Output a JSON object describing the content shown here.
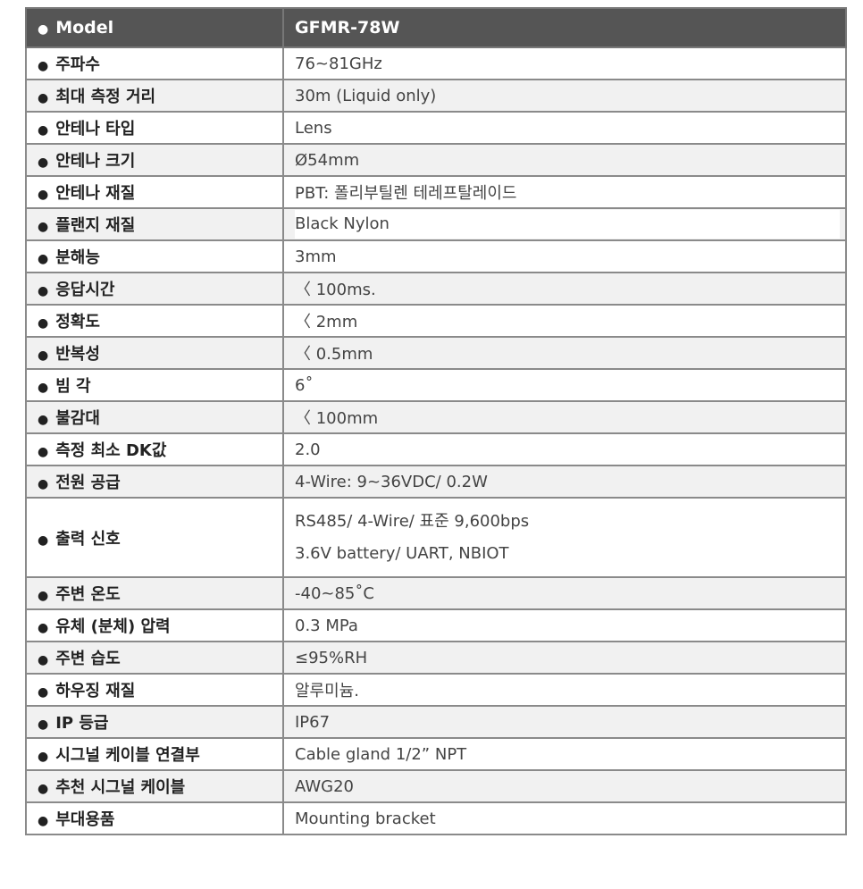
{
  "header": {
    "label": "Model",
    "value": "GFMR-78W"
  },
  "rows": [
    {
      "label": "주파수",
      "value": "76~81GHz"
    },
    {
      "label": "최대 측정 거리",
      "value": "30m (Liquid only)"
    },
    {
      "label": "안테나 타입",
      "value": "Lens"
    },
    {
      "label": "안테나 크기",
      "value": "Ø54mm"
    },
    {
      "label": "안테나 재질",
      "value": "PBT:  폴리부틸렌 테레프탈레이드"
    },
    {
      "label": "플랜지 재질",
      "value": "Black Nylon"
    },
    {
      "label": "분해능",
      "value": "3mm"
    },
    {
      "label": "응답시간",
      "value": "〈 100ms."
    },
    {
      "label": "정확도",
      "value": "〈 2mm"
    },
    {
      "label": "반복성",
      "value": "〈 0.5mm"
    },
    {
      "label": "빔 각",
      "value": "6˚"
    },
    {
      "label": "불감대",
      "value": "〈 100mm"
    },
    {
      "label": "측정 최소 DK값",
      "value": "2.0"
    },
    {
      "label": "전원 공급",
      "value": "4-Wire: 9~36VDC/ 0.2W"
    },
    {
      "label": "출력 신호",
      "value_lines": [
        "RS485/ 4-Wire/  표준  9,600bps",
        "3.6V battery/ UART, NBIOT"
      ]
    },
    {
      "label": "주변 온도",
      "value": "-40~85˚C"
    },
    {
      "label": "유체 (분체) 압력",
      "value": "0.3 MPa"
    },
    {
      "label": "주변 습도",
      "value": "≤95%RH"
    },
    {
      "label": "하우징 재질",
      "value": "알루미늄."
    },
    {
      "label": "IP 등급",
      "value": "IP67"
    },
    {
      "label": "시그널 케이블 연결부",
      "value": "Cable gland 1/2” NPT"
    },
    {
      "label": "추천 시그널 케이블",
      "value": "AWG20"
    },
    {
      "label": "부대용품",
      "value": "Mounting bracket"
    }
  ]
}
